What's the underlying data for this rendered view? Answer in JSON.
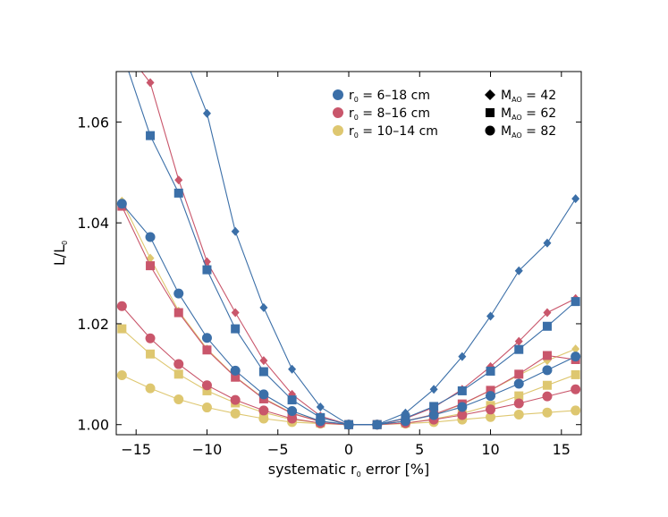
{
  "chart_data": {
    "type": "line",
    "title": "",
    "xlabel": {
      "pre": "systematic r",
      "sub": "0",
      "post": " error [%]"
    },
    "ylabel": {
      "pre": "L/L",
      "sub": "0"
    },
    "xlim": [
      -16.4,
      16.4
    ],
    "ylim": [
      0.998,
      1.07
    ],
    "xticks": [
      -15,
      -10,
      -5,
      0,
      5,
      10,
      15
    ],
    "xtick_labels": [
      "−15",
      "−10",
      "−5",
      "0",
      "5",
      "10",
      "15"
    ],
    "yticks": [
      1.0,
      1.02,
      1.04,
      1.06
    ],
    "ytick_labels": [
      "1.00",
      "1.02",
      "1.04",
      "1.06"
    ],
    "grid": false,
    "legend_placement": "top-right",
    "legend_colors": [
      {
        "pre": "r",
        "sub": "0",
        "post": " = 6–18 cm",
        "color": "#3b6fa8"
      },
      {
        "pre": "r",
        "sub": "0",
        "post": " = 8–16 cm",
        "color": "#c9566b"
      },
      {
        "pre": "r",
        "sub": "0",
        "post": " = 10–14 cm",
        "color": "#dec770"
      }
    ],
    "legend_markers": [
      {
        "marker": "diamond",
        "pre": "M",
        "sub": "AO",
        "post": " = 42"
      },
      {
        "marker": "square",
        "pre": "M",
        "sub": "AO",
        "post": " = 62"
      },
      {
        "marker": "circle",
        "pre": "M",
        "sub": "AO",
        "post": " = 82"
      }
    ],
    "x": [
      -16,
      -14,
      -12,
      -10,
      -8,
      -6,
      -4,
      -2,
      0,
      2,
      4,
      6,
      8,
      10,
      12,
      14,
      16
    ],
    "series": [
      {
        "color": "#3b6fa8",
        "marker": "diamond",
        "values": [
          1.086,
          1.074,
          1.076,
          1.0617,
          1.0383,
          1.0232,
          1.011,
          1.0035,
          1.0,
          1.0,
          1.0023,
          1.007,
          1.0135,
          1.0215,
          1.0305,
          1.036,
          1.0448
        ]
      },
      {
        "color": "#c9566b",
        "marker": "diamond",
        "values": [
          1.075,
          1.0678,
          1.0485,
          1.0323,
          1.0222,
          1.0127,
          1.006,
          1.0017,
          1.0,
          1.0,
          1.0012,
          1.0034,
          1.007,
          1.0115,
          1.0165,
          1.0222,
          1.025
        ]
      },
      {
        "color": "#dec770",
        "marker": "diamond",
        "values": [
          1.0443,
          1.033,
          1.0225,
          1.015,
          1.0095,
          1.0052,
          1.0023,
          1.0006,
          1.0,
          1.0,
          1.0007,
          1.002,
          1.004,
          1.0068,
          1.0098,
          1.0127,
          1.015
        ]
      },
      {
        "color": "#3b6fa8",
        "marker": "square",
        "values": [
          1.074,
          1.0573,
          1.0459,
          1.0307,
          1.019,
          1.0105,
          1.0049,
          1.0014,
          1.0,
          1.0,
          1.0013,
          1.0036,
          1.0067,
          1.0106,
          1.0149,
          1.0195,
          1.0244
        ]
      },
      {
        "color": "#c9566b",
        "marker": "square",
        "values": [
          1.0433,
          1.0315,
          1.0222,
          1.0148,
          1.0094,
          1.0051,
          1.0022,
          1.0006,
          1.0,
          1.0,
          1.0007,
          1.002,
          1.0041,
          1.0068,
          1.01,
          1.0137,
          1.0129
        ]
      },
      {
        "color": "#dec770",
        "marker": "square",
        "values": [
          1.019,
          1.014,
          1.01,
          1.0067,
          1.0043,
          1.0024,
          1.001,
          1.0003,
          1.0,
          1.0,
          1.0003,
          1.0011,
          1.0022,
          1.0038,
          1.0057,
          1.0078,
          1.0099
        ]
      },
      {
        "color": "#3b6fa8",
        "marker": "circle",
        "values": [
          1.0438,
          1.0372,
          1.026,
          1.0172,
          1.0107,
          1.006,
          1.0027,
          1.0007,
          1.0,
          1.0,
          1.0007,
          1.0019,
          1.0035,
          1.0057,
          1.0081,
          1.0108,
          1.0135
        ]
      },
      {
        "color": "#c9566b",
        "marker": "circle",
        "values": [
          1.0235,
          1.0171,
          1.012,
          1.0078,
          1.0049,
          1.0028,
          1.0012,
          1.0003,
          1.0,
          1.0,
          1.0003,
          1.001,
          1.0019,
          1.003,
          1.0042,
          1.0056,
          1.007
        ]
      },
      {
        "color": "#dec770",
        "marker": "circle",
        "values": [
          1.0098,
          1.0072,
          1.005,
          1.0034,
          1.0022,
          1.0012,
          1.0005,
          1.0002,
          1.0,
          1.0,
          1.0002,
          1.0005,
          1.001,
          1.0015,
          1.002,
          1.0024,
          1.0028
        ]
      }
    ]
  }
}
